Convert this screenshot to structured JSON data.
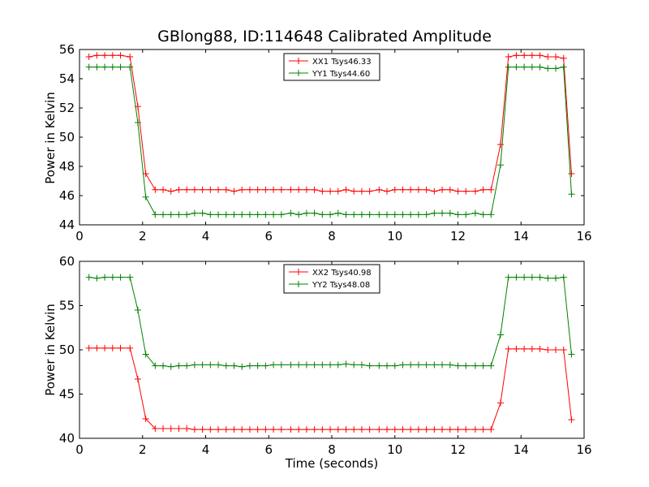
{
  "title": "GBlong88, ID:114648 Calibrated Amplitude",
  "chart_data": [
    {
      "type": "line",
      "xlabel": "",
      "ylabel": "Power in Kelvin",
      "xlim": [
        0,
        16
      ],
      "ylim": [
        44,
        56
      ],
      "xticks": [
        0,
        2,
        4,
        6,
        8,
        10,
        12,
        14,
        16
      ],
      "yticks": [
        44,
        46,
        48,
        50,
        52,
        54,
        56
      ],
      "legend": "top-center",
      "grid": false,
      "x": [
        0.3,
        0.55,
        0.8,
        1.05,
        1.3,
        1.6,
        1.85,
        2.1,
        2.4,
        2.65,
        2.9,
        3.15,
        3.4,
        3.65,
        3.9,
        4.15,
        4.4,
        4.65,
        4.9,
        5.15,
        5.4,
        5.65,
        5.9,
        6.15,
        6.4,
        6.7,
        6.95,
        7.2,
        7.45,
        7.7,
        7.95,
        8.2,
        8.45,
        8.7,
        8.95,
        9.2,
        9.5,
        9.75,
        10.0,
        10.25,
        10.5,
        10.75,
        11.0,
        11.25,
        11.5,
        11.75,
        12.0,
        12.25,
        12.55,
        12.8,
        13.05,
        13.35,
        13.6,
        13.85,
        14.1,
        14.35,
        14.6,
        14.85,
        15.1,
        15.35,
        15.6
      ],
      "series": [
        {
          "name": "XX1 Tsys46.33",
          "color": "#ff0000",
          "values": [
            55.5,
            55.6,
            55.6,
            55.6,
            55.6,
            55.5,
            52.1,
            47.5,
            46.4,
            46.4,
            46.3,
            46.4,
            46.4,
            46.4,
            46.4,
            46.4,
            46.4,
            46.4,
            46.3,
            46.4,
            46.4,
            46.4,
            46.4,
            46.4,
            46.4,
            46.4,
            46.4,
            46.4,
            46.4,
            46.3,
            46.3,
            46.3,
            46.4,
            46.3,
            46.3,
            46.3,
            46.4,
            46.3,
            46.4,
            46.4,
            46.4,
            46.4,
            46.4,
            46.3,
            46.4,
            46.4,
            46.3,
            46.3,
            46.3,
            46.4,
            46.4,
            49.5,
            55.5,
            55.6,
            55.6,
            55.6,
            55.6,
            55.5,
            55.5,
            55.4,
            47.5
          ]
        },
        {
          "name": "YY1 Tsys44.60",
          "color": "#008000",
          "values": [
            54.8,
            54.8,
            54.8,
            54.8,
            54.8,
            54.8,
            51.0,
            45.9,
            44.7,
            44.7,
            44.7,
            44.7,
            44.7,
            44.8,
            44.8,
            44.7,
            44.7,
            44.7,
            44.7,
            44.7,
            44.7,
            44.7,
            44.7,
            44.7,
            44.7,
            44.8,
            44.7,
            44.8,
            44.8,
            44.7,
            44.7,
            44.8,
            44.7,
            44.7,
            44.7,
            44.7,
            44.7,
            44.7,
            44.7,
            44.7,
            44.7,
            44.7,
            44.7,
            44.8,
            44.8,
            44.8,
            44.7,
            44.7,
            44.8,
            44.7,
            44.7,
            48.1,
            54.8,
            54.8,
            54.8,
            54.8,
            54.8,
            54.7,
            54.7,
            54.8,
            46.1
          ]
        }
      ]
    },
    {
      "type": "line",
      "xlabel": "Time (seconds)",
      "ylabel": "Power in Kelvin",
      "xlim": [
        0,
        16
      ],
      "ylim": [
        40,
        60
      ],
      "xticks": [
        0,
        2,
        4,
        6,
        8,
        10,
        12,
        14,
        16
      ],
      "yticks": [
        40,
        45,
        50,
        55,
        60
      ],
      "legend": "top-center",
      "grid": false,
      "x": [
        0.3,
        0.55,
        0.8,
        1.05,
        1.3,
        1.6,
        1.85,
        2.1,
        2.4,
        2.65,
        2.9,
        3.15,
        3.4,
        3.65,
        3.9,
        4.15,
        4.4,
        4.65,
        4.9,
        5.15,
        5.4,
        5.65,
        5.9,
        6.15,
        6.4,
        6.7,
        6.95,
        7.2,
        7.45,
        7.7,
        7.95,
        8.2,
        8.45,
        8.7,
        8.95,
        9.2,
        9.5,
        9.75,
        10.0,
        10.25,
        10.5,
        10.75,
        11.0,
        11.25,
        11.5,
        11.75,
        12.0,
        12.25,
        12.55,
        12.8,
        13.05,
        13.35,
        13.6,
        13.85,
        14.1,
        14.35,
        14.6,
        14.85,
        15.1,
        15.35,
        15.6
      ],
      "series": [
        {
          "name": "XX2 Tsys40.98",
          "color": "#ff0000",
          "values": [
            50.2,
            50.2,
            50.2,
            50.2,
            50.2,
            50.2,
            46.7,
            42.2,
            41.1,
            41.1,
            41.1,
            41.1,
            41.1,
            41.0,
            41.0,
            41.0,
            41.0,
            41.0,
            41.0,
            41.0,
            41.0,
            41.0,
            41.0,
            41.0,
            41.0,
            41.0,
            41.0,
            41.0,
            41.0,
            41.0,
            41.0,
            41.0,
            41.0,
            41.0,
            41.0,
            41.0,
            41.0,
            41.0,
            41.0,
            41.0,
            41.0,
            41.0,
            41.0,
            41.0,
            41.0,
            41.0,
            41.0,
            41.0,
            41.0,
            41.0,
            41.0,
            44.0,
            50.1,
            50.1,
            50.1,
            50.1,
            50.1,
            50.0,
            50.0,
            50.0,
            42.1
          ]
        },
        {
          "name": "YY2 Tsys48.08",
          "color": "#008000",
          "values": [
            58.2,
            58.1,
            58.2,
            58.2,
            58.2,
            58.2,
            54.5,
            49.5,
            48.2,
            48.2,
            48.1,
            48.2,
            48.2,
            48.3,
            48.3,
            48.3,
            48.3,
            48.2,
            48.2,
            48.1,
            48.2,
            48.2,
            48.2,
            48.3,
            48.3,
            48.3,
            48.3,
            48.3,
            48.3,
            48.3,
            48.3,
            48.3,
            48.4,
            48.3,
            48.3,
            48.2,
            48.2,
            48.2,
            48.2,
            48.3,
            48.3,
            48.3,
            48.3,
            48.3,
            48.3,
            48.3,
            48.2,
            48.2,
            48.2,
            48.2,
            48.2,
            51.7,
            58.2,
            58.2,
            58.2,
            58.2,
            58.2,
            58.1,
            58.1,
            58.2,
            49.5
          ]
        }
      ]
    }
  ]
}
